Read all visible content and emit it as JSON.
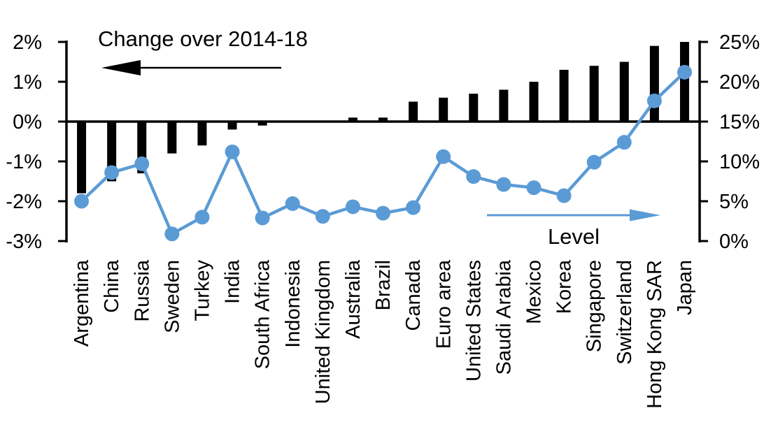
{
  "chart_data": {
    "type": "bar",
    "subtype": "bar-line-combo",
    "categories": [
      "Argentina",
      "China",
      "Russia",
      "Sweden",
      "Turkey",
      "India",
      "South Africa",
      "Indonesia",
      "United Kingdom",
      "Australia",
      "Brazil",
      "Canada",
      "Euro area",
      "United States",
      "Saudi Arabia",
      "Mexico",
      "Korea",
      "Singapore",
      "Switzerland",
      "Hong Kong SAR",
      "Japan"
    ],
    "series": [
      {
        "name": "Change over 2014-18",
        "type": "bar",
        "axis": "left",
        "color": "#000000",
        "values": [
          -1.8,
          -1.5,
          -1.3,
          -0.8,
          -0.6,
          -0.2,
          -0.1,
          0.0,
          0.0,
          0.1,
          0.1,
          0.5,
          0.6,
          0.7,
          0.8,
          1.0,
          1.3,
          1.4,
          1.5,
          1.9,
          2.0
        ]
      },
      {
        "name": "Level",
        "type": "line",
        "axis": "right",
        "color": "#5B9BD5",
        "values": [
          5.0,
          8.6,
          9.7,
          0.9,
          3.0,
          11.2,
          2.9,
          4.7,
          3.1,
          4.3,
          3.5,
          4.2,
          10.6,
          8.1,
          7.1,
          6.7,
          5.7,
          9.9,
          12.4,
          17.6,
          21.2
        ]
      }
    ],
    "left_axis": {
      "unit": "%",
      "min": -3,
      "max": 2,
      "ticks": [
        {
          "label": "2%",
          "value": 2
        },
        {
          "label": "1%",
          "value": 1
        },
        {
          "label": "0%",
          "value": 0
        },
        {
          "label": "-1%",
          "value": -1
        },
        {
          "label": "-2%",
          "value": -2
        },
        {
          "label": "-3%",
          "value": -3
        }
      ]
    },
    "right_axis": {
      "unit": "%",
      "min": 0,
      "max": 25,
      "ticks": [
        {
          "label": "25%",
          "value": 25
        },
        {
          "label": "20%",
          "value": 20
        },
        {
          "label": "15%",
          "value": 15
        },
        {
          "label": "10%",
          "value": 10
        },
        {
          "label": "5%",
          "value": 5
        },
        {
          "label": "0%",
          "value": 0
        }
      ]
    },
    "annotations": {
      "bar_series_label": "Change over 2014-18",
      "bar_arrow_direction": "left",
      "line_series_label": "Level",
      "line_arrow_direction": "right"
    },
    "colors": {
      "bar": "#000000",
      "line": "#5B9BD5",
      "text": "#000000",
      "background": "#FFFFFF"
    },
    "grid": false,
    "legend_position": "none"
  }
}
